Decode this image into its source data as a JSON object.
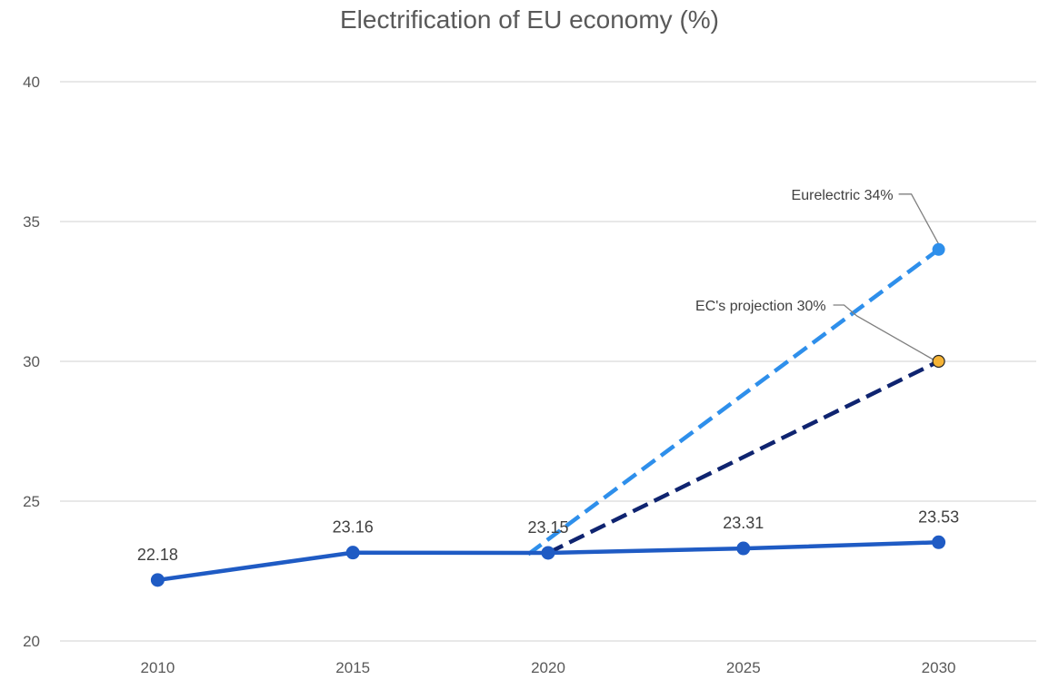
{
  "chart_data": {
    "type": "line",
    "title": "Electrification of EU economy (%)",
    "xlabel": "",
    "ylabel": "",
    "categories": [
      "2010",
      "2015",
      "2020",
      "2025",
      "2030"
    ],
    "ylim": [
      20,
      40
    ],
    "yticks": [
      "20",
      "25",
      "30",
      "35",
      "40"
    ],
    "grid": true,
    "series": [
      {
        "values": [
          22.18,
          23.16,
          23.15,
          23.31,
          23.53
        ],
        "labels": [
          "22.18",
          "23.16",
          "23.15",
          "23.31",
          "23.53"
        ],
        "color": "#1F5BC4",
        "style": "solid"
      },
      {
        "values": [
          null,
          null,
          23.1,
          null,
          34
        ],
        "color": "#2E8FEB",
        "style": "dashed"
      },
      {
        "values": [
          null,
          null,
          23.15,
          null,
          30
        ],
        "color": "#0F2470",
        "style": "dashed"
      }
    ],
    "annotations": [
      {
        "text": "Eurelectric 34%",
        "x": "2030",
        "y": 34,
        "color": "#2E8FEB"
      },
      {
        "text": "EC's projection  30%",
        "x": "2030",
        "y": 30,
        "color": "#F5B335"
      }
    ]
  }
}
